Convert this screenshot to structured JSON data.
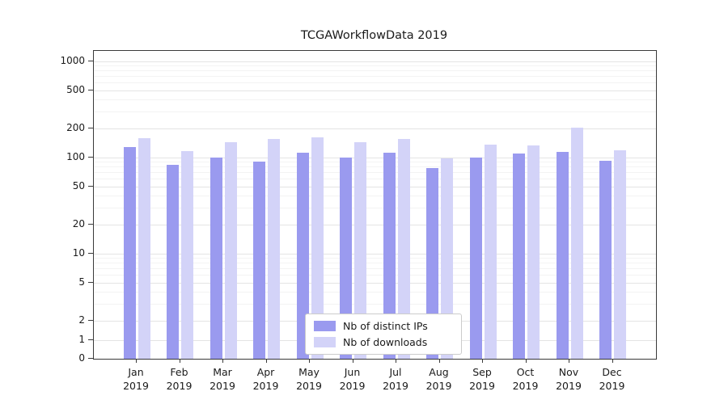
{
  "title": "TCGAWorkflowData 2019",
  "chart_data": {
    "type": "bar",
    "title": "TCGAWorkflowData 2019",
    "categories": [
      "Jan 2019",
      "Feb 2019",
      "Mar 2019",
      "Apr 2019",
      "May 2019",
      "Jun 2019",
      "Jul 2019",
      "Aug 2019",
      "Sep 2019",
      "Oct 2019",
      "Nov 2019",
      "Dec 2019"
    ],
    "series": [
      {
        "name": "Nb of distinct IPs",
        "color": "#9a9aef",
        "values": [
          128,
          84,
          100,
          90,
          112,
          100,
          112,
          78,
          100,
          110,
          115,
          92
        ]
      },
      {
        "name": "Nb of downloads",
        "color": "#d3d3f8",
        "values": [
          160,
          117,
          145,
          155,
          163,
          145,
          157,
          98,
          135,
          132,
          205,
          118
        ]
      }
    ],
    "yscale": "symlog",
    "yticks": [
      0,
      1,
      2,
      5,
      10,
      20,
      50,
      100,
      200,
      500,
      1000
    ],
    "ylim": [
      0,
      1000
    ],
    "xlabel": "",
    "ylabel": "",
    "grid": true,
    "legend_position": "lower center"
  }
}
